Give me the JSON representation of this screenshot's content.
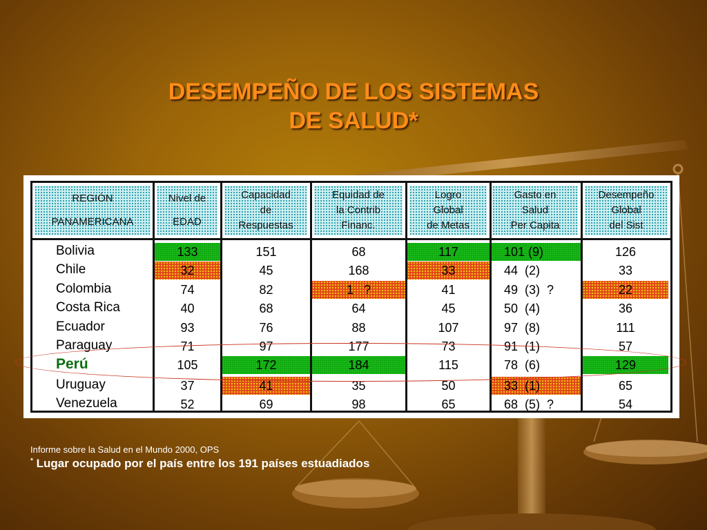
{
  "title_lines": [
    "DESEMPEÑO DE LOS SISTEMAS",
    "DE SALUD*"
  ],
  "headers": [
    [
      "REGIÓN",
      "PANAMERICANA"
    ],
    [
      "Nivel de",
      "EDAD"
    ],
    [
      "Capacidad",
      "de",
      "Respuestas"
    ],
    [
      "Equidad de",
      "la Contrib",
      "Financ."
    ],
    [
      "Logro",
      "Global",
      "de Metas"
    ],
    [
      "Gasto en",
      "Salud",
      "Per Capita"
    ],
    [
      "Desempeño",
      "Global",
      "del Sist"
    ]
  ],
  "rows": [
    {
      "country": "Bolivia",
      "values": [
        "133",
        "151",
        "68",
        "117",
        "101 (9)",
        "126"
      ]
    },
    {
      "country": "Chile",
      "values": [
        "32",
        "45",
        "168",
        "33",
        "44  (2)",
        "33"
      ]
    },
    {
      "country": "Colombia",
      "values": [
        "74",
        "82",
        "1   ?",
        "41",
        "49  (3)  ?",
        "22"
      ]
    },
    {
      "country": "Costa Rica",
      "values": [
        "40",
        "68",
        "64",
        "45",
        "50  (4)",
        "36"
      ]
    },
    {
      "country": "Ecuador",
      "values": [
        "93",
        "76",
        "88",
        "107",
        "97  (8)",
        "111"
      ]
    },
    {
      "country": "Paraguay",
      "values": [
        "71",
        "97",
        "177",
        "73",
        "91  (1)",
        "57"
      ]
    },
    {
      "country": "Perú",
      "values": [
        "105",
        "172",
        "184",
        "115",
        "78  (6)",
        "129"
      ]
    },
    {
      "country": "Uruguay",
      "values": [
        "37",
        "41",
        "35",
        "50",
        "33  (1)",
        "65"
      ]
    },
    {
      "country": "Venezuela",
      "values": [
        "52",
        "69",
        "98",
        "65",
        "68  (5)  ?",
        "54"
      ]
    }
  ],
  "highlight_colors": {
    "good": "#0ea30e",
    "bad": "#e0441a"
  },
  "source": "Informe sobre la Salud en el Mundo 2000, OPS",
  "note_marker": "*",
  "note": "Lugar ocupado por el país entre los 191 países estuadiados"
}
